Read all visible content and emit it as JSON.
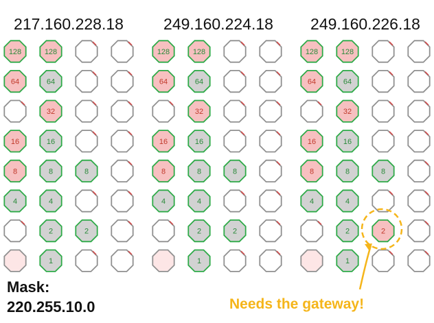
{
  "titles": [
    "217.160.228.18",
    "249.160.224.18",
    "249.160.226.18"
  ],
  "mask": {
    "label": "Mask:",
    "value": "220.255.10.0"
  },
  "note": "Needs the gateway!",
  "row_values": [
    "128",
    "64",
    "32",
    "16",
    "8",
    "4",
    "2",
    "1"
  ],
  "colors": {
    "red_fill": "#f7c0c0",
    "gray_fill": "#d2d2d2",
    "both_fill": "#d6d6d6",
    "faint_fill": "#fde6e6",
    "green_stroke": "#2eaa48",
    "plain_stroke": "#909090",
    "red_stroke": "#d04a4a",
    "accent_yellow": "#f5b51a"
  },
  "groups": [
    {
      "title": "217.160.228.18",
      "cells": [
        [
          "both",
          "both",
          "empty",
          "empty"
        ],
        [
          "red",
          "gray",
          "empty",
          "empty"
        ],
        [
          "empty",
          "red",
          "empty",
          "empty"
        ],
        [
          "red",
          "gray",
          "empty",
          "empty"
        ],
        [
          "red",
          "gray",
          "gray",
          "empty"
        ],
        [
          "gray",
          "gray",
          "empty",
          "empty"
        ],
        [
          "empty",
          "gray",
          "gray",
          "empty"
        ],
        [
          "faint",
          "gray",
          "empty",
          "empty"
        ]
      ]
    },
    {
      "title": "249.160.224.18",
      "cells": [
        [
          "both",
          "both",
          "empty",
          "empty"
        ],
        [
          "red",
          "gray",
          "empty",
          "empty"
        ],
        [
          "empty",
          "red",
          "empty",
          "empty"
        ],
        [
          "red",
          "gray",
          "empty",
          "empty"
        ],
        [
          "red",
          "gray",
          "gray",
          "empty"
        ],
        [
          "gray",
          "gray",
          "empty",
          "empty"
        ],
        [
          "empty",
          "gray",
          "gray",
          "empty"
        ],
        [
          "faint",
          "gray",
          "empty",
          "empty"
        ]
      ]
    },
    {
      "title": "249.160.226.18",
      "cells": [
        [
          "both",
          "both",
          "empty",
          "empty"
        ],
        [
          "red",
          "gray",
          "empty",
          "empty"
        ],
        [
          "empty",
          "red",
          "empty",
          "empty"
        ],
        [
          "red",
          "gray",
          "empty",
          "empty"
        ],
        [
          "red",
          "gray",
          "gray",
          "empty"
        ],
        [
          "gray",
          "gray",
          "empty",
          "empty"
        ],
        [
          "empty",
          "gray",
          "red",
          "empty"
        ],
        [
          "faint",
          "gray",
          "empty",
          "empty"
        ]
      ]
    }
  ],
  "highlight": {
    "group": 3,
    "row": 7,
    "column": 3,
    "value": "2"
  }
}
